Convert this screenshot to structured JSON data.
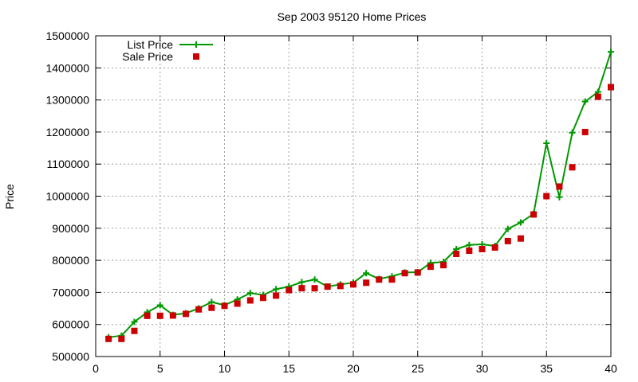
{
  "chart_data": {
    "type": "line",
    "title": "Sep 2003 95120 Home Prices",
    "xlabel": "",
    "ylabel": "Price",
    "xlim": [
      0,
      40
    ],
    "ylim": [
      500000,
      1500000
    ],
    "x_ticks": [
      0,
      5,
      10,
      15,
      20,
      25,
      30,
      35,
      40
    ],
    "y_ticks": [
      500000,
      600000,
      700000,
      800000,
      900000,
      1000000,
      1100000,
      1200000,
      1300000,
      1400000,
      1500000
    ],
    "x_tick_labels": [
      "0",
      "5",
      "10",
      "15",
      "20",
      "25",
      "30",
      "35",
      "40"
    ],
    "y_tick_labels": [
      "500000",
      "600000",
      "700000",
      "800000",
      "900000",
      "1000000",
      "1100000",
      "1200000",
      "1300000",
      "1400000",
      "1500000"
    ],
    "grid": true,
    "legend_position": "top-left",
    "x": [
      1,
      2,
      3,
      4,
      5,
      6,
      7,
      8,
      9,
      10,
      11,
      12,
      13,
      14,
      15,
      16,
      17,
      18,
      19,
      20,
      21,
      22,
      23,
      24,
      25,
      26,
      27,
      28,
      29,
      30,
      31,
      32,
      33,
      34,
      35,
      36,
      37,
      38,
      39,
      40
    ],
    "series": [
      {
        "name": "List Price",
        "style": "line+cross",
        "color": "#009900",
        "values": [
          560000,
          565000,
          608000,
          638000,
          660000,
          630000,
          635000,
          650000,
          670000,
          660000,
          678000,
          698000,
          692000,
          710000,
          718000,
          732000,
          740000,
          718000,
          725000,
          730000,
          760000,
          742000,
          750000,
          762000,
          763000,
          792000,
          795000,
          835000,
          848000,
          850000,
          845000,
          898000,
          918000,
          945000,
          1165000,
          997000,
          1198000,
          1295000,
          1325000,
          1450000
        ]
      },
      {
        "name": "Sale Price",
        "style": "square",
        "color": "#cc0000",
        "values": [
          555000,
          555000,
          580000,
          627000,
          627000,
          628000,
          633000,
          647000,
          652000,
          658000,
          665000,
          675000,
          683000,
          690000,
          707000,
          713000,
          713000,
          718000,
          720000,
          725000,
          730000,
          740000,
          740000,
          760000,
          762000,
          780000,
          785000,
          820000,
          830000,
          835000,
          840000,
          860000,
          868000,
          943000,
          1000000,
          1030000,
          1090000,
          1200000,
          1310000,
          1340000
        ]
      }
    ]
  }
}
